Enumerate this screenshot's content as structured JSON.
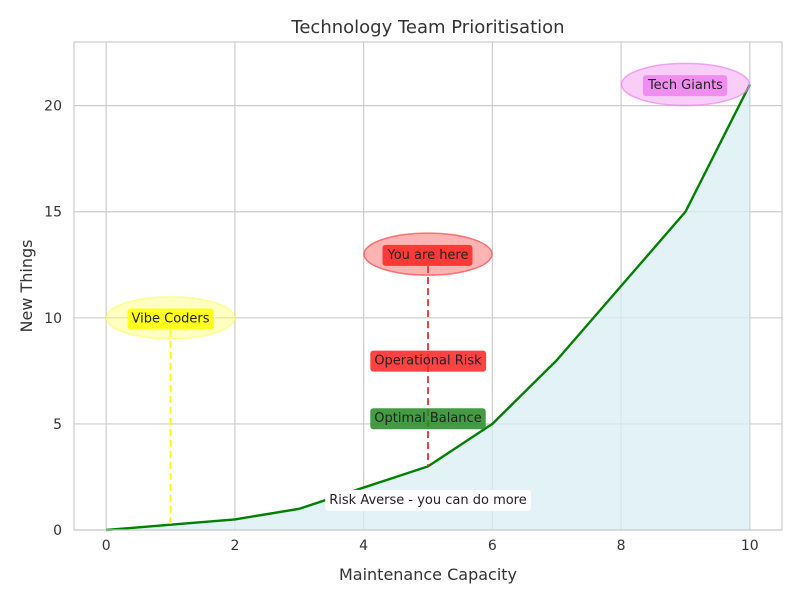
{
  "chart_data": {
    "type": "area",
    "title": "Technology Team Prioritisation",
    "xlabel": "Maintenance Capacity",
    "ylabel": "New Things",
    "xlim": [
      -0.5,
      10.5
    ],
    "ylim": [
      0,
      23
    ],
    "xticks": [
      0,
      2,
      4,
      6,
      8,
      10
    ],
    "yticks": [
      0,
      5,
      10,
      15,
      20
    ],
    "grid": true,
    "colors": {
      "line": "#008000",
      "fill": "#d8eef3",
      "grid": "#cccccc",
      "axes_edge": "#cccccc"
    },
    "series": [
      {
        "x": [
          0,
          1,
          2,
          3,
          4,
          5,
          6,
          7,
          8,
          9,
          10
        ],
        "values": [
          0,
          0.25,
          0.5,
          1,
          2,
          3,
          5,
          8,
          11.5,
          15,
          21
        ]
      }
    ],
    "annotations": [
      {
        "text": "Tech Giants",
        "x": 9,
        "y": 21,
        "box_color": "#ee82ee",
        "ellipse_color": "#ee82ee"
      },
      {
        "text": "You are here",
        "x": 5,
        "y": 13,
        "box_color": "#ff2222",
        "ellipse_color": "#ff4444",
        "line_to_y": 3,
        "line_color": "#e03030"
      },
      {
        "text": "Vibe Coders",
        "x": 1,
        "y": 10,
        "box_color": "#ffff00",
        "ellipse_color": "#ffff66",
        "line_to_y": 0.25,
        "line_color": "#ffff00"
      },
      {
        "text": "Operational Risk",
        "x": 5,
        "y": 8,
        "box_color": "#ff2222"
      },
      {
        "text": "Optimal Balance",
        "x": 5,
        "y": 5.3,
        "box_color": "#228b22"
      },
      {
        "text": "Risk Averse - you can do more",
        "x": 5,
        "y": 1.5,
        "box_color": "#ffffff"
      }
    ]
  }
}
